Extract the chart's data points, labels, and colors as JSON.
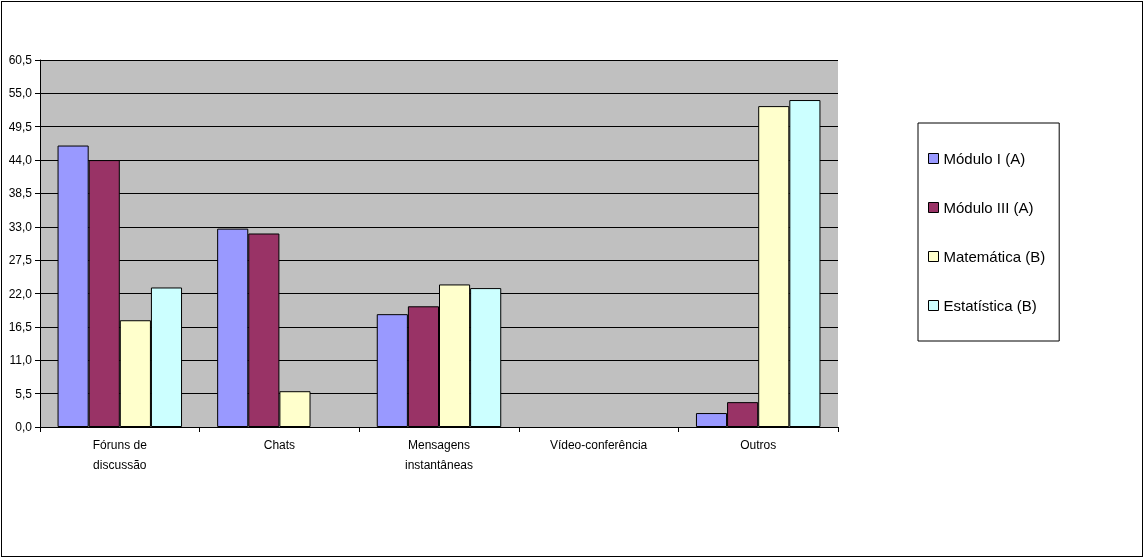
{
  "chart_data": {
    "type": "bar",
    "categories": [
      "Fóruns de\ndiscussão",
      "Chats",
      "Mensagens\ninstantâneas",
      "Vídeo-conferência",
      "Outros"
    ],
    "series": [
      {
        "name": "Módulo I (A)",
        "color": "#9999ff",
        "values": [
          46.4,
          32.7,
          18.6,
          null,
          2.3
        ]
      },
      {
        "name": "Módulo III (A)",
        "color": "#993366",
        "values": [
          44.0,
          31.9,
          19.9,
          null,
          4.1
        ]
      },
      {
        "name": "Matemática (B)",
        "color": "#ffffcc",
        "values": [
          17.6,
          5.9,
          23.5,
          null,
          52.9
        ]
      },
      {
        "name": "Estatística (B)",
        "color": "#ccffff",
        "values": [
          23.0,
          null,
          22.9,
          null,
          53.9
        ]
      }
    ],
    "ylim": [
      0,
      60.5
    ],
    "yticks": [
      {
        "value": 0,
        "label": "0,0"
      },
      {
        "value": 5.5,
        "label": "5,5"
      },
      {
        "value": 11,
        "label": "11,0"
      },
      {
        "value": 16.5,
        "label": "16,5"
      },
      {
        "value": 22,
        "label": "22,0"
      },
      {
        "value": 27.5,
        "label": "27,5"
      },
      {
        "value": 33,
        "label": "33,0"
      },
      {
        "value": 38.5,
        "label": "38,5"
      },
      {
        "value": 44,
        "label": "44,0"
      },
      {
        "value": 49.5,
        "label": "49,5"
      },
      {
        "value": 55,
        "label": "55,0"
      },
      {
        "value": 60.5,
        "label": "60,5"
      }
    ],
    "grid": "y",
    "legend": "right"
  }
}
